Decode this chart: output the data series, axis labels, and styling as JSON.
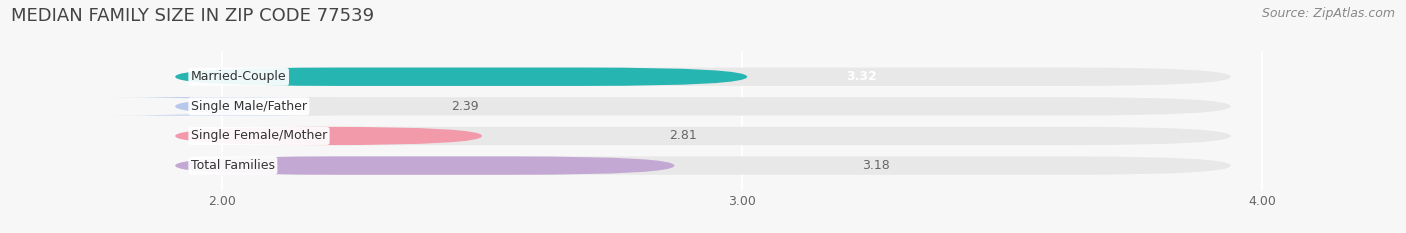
{
  "title": "MEDIAN FAMILY SIZE IN ZIP CODE 77539",
  "source": "Source: ZipAtlas.com",
  "categories": [
    "Married-Couple",
    "Single Male/Father",
    "Single Female/Mother",
    "Total Families"
  ],
  "values": [
    3.32,
    2.39,
    2.81,
    3.18
  ],
  "bar_colors": [
    "#26b5b0",
    "#b8c8ed",
    "#f299aa",
    "#c4a8d4"
  ],
  "value_colors": [
    "#ffffff",
    "#666666",
    "#666666",
    "#666666"
  ],
  "value_inside": [
    true,
    false,
    false,
    false
  ],
  "xlim_left": 1.6,
  "xlim_right": 4.25,
  "data_min": 2.0,
  "xticks": [
    2.0,
    3.0,
    4.0
  ],
  "xtick_labels": [
    "2.00",
    "3.00",
    "4.00"
  ],
  "background_color": "#f7f7f7",
  "bar_bg_color": "#e8e8e8",
  "bar_height": 0.62,
  "bar_gap": 0.38,
  "title_fontsize": 13,
  "source_fontsize": 9,
  "label_fontsize": 9,
  "value_fontsize": 9,
  "tick_fontsize": 9,
  "grid_color": "#ffffff",
  "grid_linewidth": 1.5
}
